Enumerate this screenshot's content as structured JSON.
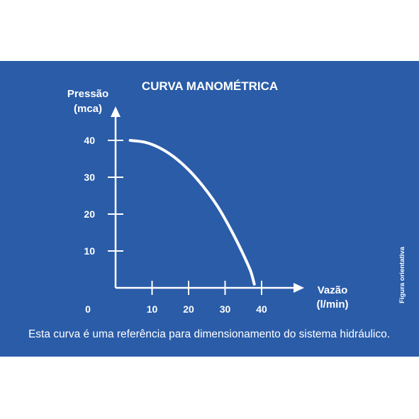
{
  "colors": {
    "panel": "#2a5ca8",
    "ink": "#ffffff",
    "page": "#ffffff"
  },
  "chart_data": {
    "type": "line",
    "title": "CURVA MANOMÉTRICA",
    "ylabel": [
      "Pressão",
      "(mca)"
    ],
    "xlabel": [
      "Vazão",
      "(l/min)"
    ],
    "x_ticks": [
      "0",
      "10",
      "20",
      "30",
      "40"
    ],
    "y_ticks": [
      "10",
      "20",
      "30",
      "40"
    ],
    "xlim": [
      0,
      45
    ],
    "ylim": [
      0,
      45
    ],
    "grid": false,
    "series": [
      {
        "x": [
          4,
          8,
          12,
          16,
          20,
          24,
          28,
          32,
          35,
          37,
          38
        ],
        "y": [
          40,
          39.5,
          38,
          35.5,
          32,
          27.5,
          22,
          15,
          9,
          4.5,
          1
        ]
      }
    ]
  },
  "caption": "Esta curva é uma referência para dimensionamento do sistema hidráulico.",
  "side_note": "Figura orientativa"
}
